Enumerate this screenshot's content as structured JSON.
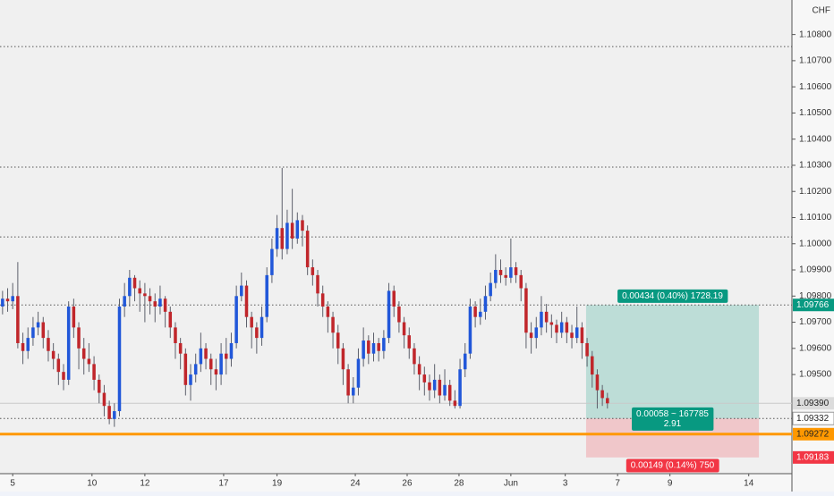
{
  "chart_data": {
    "type": "candlestick",
    "currency": "CHF",
    "up_color": "#2157d9",
    "down_color": "#c0262b",
    "wick_color": "#5d606b",
    "open": [
      1.0976,
      1.0979,
      1.0978,
      1.098,
      1.0962,
      1.0959,
      1.0964,
      1.0968,
      1.097,
      1.0964,
      1.0959,
      1.0956,
      1.0951,
      1.0948,
      1.0976,
      1.0968,
      1.096,
      1.0956,
      1.0954,
      1.0948,
      1.0943,
      1.0938,
      1.0933,
      1.0936,
      1.0976,
      1.098,
      1.0987,
      1.0983,
      1.0981,
      1.098,
      1.0978,
      1.0976,
      1.0979,
      1.0974,
      1.0968,
      1.0962,
      1.0958,
      1.0946,
      1.095,
      1.0954,
      1.096,
      1.0956,
      1.0952,
      1.095,
      1.0958,
      1.0956,
      1.0962,
      1.098,
      1.0984,
      1.0972,
      1.0968,
      1.0964,
      1.0972,
      1.0988,
      1.0998,
      1.1006,
      1.0998,
      1.1008,
      1.1002,
      1.1009,
      1.1005,
      1.0991,
      1.0988,
      1.0981,
      1.0976,
      1.0972,
      1.0966,
      1.096,
      1.0952,
      1.0942,
      1.0945,
      1.0956,
      1.0963,
      1.0958,
      1.0962,
      1.0959,
      1.0964,
      1.0982,
      1.0976,
      1.097,
      1.0965,
      1.096,
      1.0954,
      1.095,
      1.0947,
      1.0944,
      1.0948,
      1.0942,
      1.0946,
      1.094,
      1.0938,
      1.0952,
      1.0958,
      1.0976,
      1.0972,
      1.0974,
      1.098,
      1.0985,
      1.099,
      1.0988,
      1.0987,
      1.0991,
      1.0988,
      1.0983,
      1.0966,
      1.0964,
      1.0968,
      1.0974,
      1.097,
      1.0969,
      1.0966,
      1.097,
      1.0966,
      1.0964,
      1.0968,
      1.0962,
      1.0957,
      1.095,
      1.0944,
      1.0941
    ],
    "high": [
      1.0982,
      1.0983,
      1.0985,
      1.0993,
      1.0966,
      1.0968,
      1.0972,
      1.0974,
      1.0972,
      1.0967,
      1.0962,
      1.0958,
      1.0954,
      1.0978,
      1.0979,
      1.097,
      1.0964,
      1.0962,
      1.0957,
      1.095,
      1.0946,
      1.094,
      1.0939,
      1.0979,
      1.0985,
      1.099,
      1.0988,
      1.0986,
      1.0985,
      1.0983,
      1.0981,
      1.0984,
      1.098,
      1.0976,
      1.097,
      1.0964,
      1.096,
      1.0954,
      1.0958,
      1.0966,
      1.0962,
      1.0958,
      1.0956,
      1.0962,
      1.0964,
      1.0966,
      1.0984,
      1.0989,
      1.0986,
      1.0974,
      1.097,
      1.0976,
      1.0991,
      1.1002,
      1.1011,
      1.1029,
      1.1013,
      1.1021,
      1.1012,
      1.1011,
      1.1007,
      1.0994,
      1.099,
      1.0984,
      1.0978,
      1.0974,
      1.0969,
      1.0962,
      1.0954,
      1.0949,
      1.096,
      1.0968,
      1.0965,
      1.0966,
      1.0964,
      1.0967,
      1.0985,
      1.0984,
      1.0978,
      1.0972,
      1.0968,
      1.0962,
      1.0957,
      1.0953,
      1.095,
      1.0954,
      1.095,
      1.0952,
      1.0948,
      1.0944,
      1.0956,
      1.0962,
      1.0979,
      1.0978,
      1.0979,
      1.0984,
      1.0989,
      1.0996,
      1.0994,
      1.0991,
      1.1002,
      1.0993,
      1.099,
      1.0985,
      1.097,
      1.0972,
      1.098,
      1.0977,
      1.0973,
      1.0971,
      1.0974,
      1.0972,
      1.0969,
      1.0976,
      1.097,
      1.0964,
      1.0959,
      1.0952,
      1.0946,
      1.0943
    ],
    "low": [
      1.0973,
      1.0974,
      1.0975,
      1.096,
      1.0954,
      1.0956,
      1.0961,
      1.0965,
      1.096,
      1.0955,
      1.0952,
      1.0946,
      1.0944,
      1.0946,
      1.0964,
      1.0952,
      1.095,
      1.0951,
      1.0944,
      1.0939,
      1.0934,
      1.0931,
      1.093,
      1.0934,
      1.0972,
      1.0976,
      1.0978,
      1.0974,
      1.097,
      1.0973,
      1.097,
      1.0973,
      1.0968,
      1.0964,
      1.0956,
      1.0952,
      1.0942,
      1.094,
      1.0947,
      1.0951,
      1.0952,
      1.0946,
      1.0944,
      1.0946,
      1.095,
      1.0953,
      1.096,
      1.0978,
      1.0968,
      1.096,
      1.0958,
      1.0961,
      1.097,
      1.0985,
      1.0995,
      1.0994,
      1.0996,
      1.0998,
      1.1,
      1.0999,
      1.0988,
      1.0984,
      1.0976,
      1.0972,
      1.0966,
      1.096,
      1.0954,
      1.0946,
      1.0939,
      1.0939,
      1.0942,
      1.0953,
      1.0954,
      1.0955,
      1.0955,
      1.0956,
      1.0962,
      1.0972,
      1.0966,
      1.096,
      1.0956,
      1.095,
      1.0944,
      1.0942,
      1.094,
      1.0941,
      1.0939,
      1.094,
      1.0938,
      1.0937,
      1.0937,
      1.0949,
      1.0956,
      1.0968,
      1.0969,
      1.0971,
      1.0978,
      1.0983,
      1.0985,
      1.0984,
      1.0985,
      1.0985,
      1.0978,
      1.096,
      1.0958,
      1.096,
      1.0965,
      1.0966,
      1.0964,
      1.0962,
      1.0964,
      1.0962,
      1.096,
      1.0962,
      1.0956,
      1.0953,
      1.0945,
      1.0937,
      1.0938,
      1.0937
    ],
    "close": [
      1.0979,
      1.0978,
      1.098,
      1.0962,
      1.0959,
      1.0964,
      1.0968,
      1.097,
      1.0964,
      1.0959,
      1.0956,
      1.0951,
      1.0948,
      1.0976,
      1.0968,
      1.096,
      1.0956,
      1.0954,
      1.0948,
      1.0943,
      1.0938,
      1.0933,
      1.0936,
      1.0976,
      1.098,
      1.0987,
      1.0983,
      1.0981,
      1.098,
      1.0978,
      1.0976,
      1.0979,
      1.0974,
      1.0968,
      1.0962,
      1.0958,
      1.0946,
      1.095,
      1.0954,
      1.096,
      1.0956,
      1.0952,
      1.095,
      1.0958,
      1.0956,
      1.0962,
      1.098,
      1.0984,
      1.0972,
      1.0968,
      1.0964,
      1.0972,
      1.0988,
      1.0998,
      1.1006,
      1.0998,
      1.1008,
      1.1002,
      1.1009,
      1.1005,
      1.0991,
      1.0988,
      1.0981,
      1.0976,
      1.0972,
      1.0966,
      1.096,
      1.0952,
      1.0942,
      1.0945,
      1.0956,
      1.0963,
      1.0958,
      1.0962,
      1.0959,
      1.0964,
      1.0982,
      1.0976,
      1.097,
      1.0965,
      1.096,
      1.0954,
      1.095,
      1.0947,
      1.0944,
      1.0948,
      1.0942,
      1.0946,
      1.094,
      1.0938,
      1.0952,
      1.0958,
      1.0976,
      1.0972,
      1.0974,
      1.098,
      1.0985,
      1.099,
      1.0988,
      1.0987,
      1.0991,
      1.0988,
      1.0983,
      1.0966,
      1.0964,
      1.0968,
      1.0974,
      1.097,
      1.0969,
      1.0966,
      1.097,
      1.0966,
      1.0964,
      1.0968,
      1.0962,
      1.0957,
      1.095,
      1.0944,
      1.0941,
      1.0939
    ],
    "xlim": [
      -0.5,
      155.3
    ],
    "ylim": [
      1.09121,
      1.10932
    ],
    "yticks": [
      {
        "value": 1.108,
        "label": "1.10800"
      },
      {
        "value": 1.107,
        "label": "1.10700"
      },
      {
        "value": 1.106,
        "label": "1.10600"
      },
      {
        "value": 1.105,
        "label": "1.10500"
      },
      {
        "value": 1.104,
        "label": "1.10400"
      },
      {
        "value": 1.103,
        "label": "1.10300"
      },
      {
        "value": 1.102,
        "label": "1.10200"
      },
      {
        "value": 1.101,
        "label": "1.10100"
      },
      {
        "value": 1.1,
        "label": "1.10000"
      },
      {
        "value": 1.099,
        "label": "1.09900"
      },
      {
        "value": 1.098,
        "label": "1.09800"
      },
      {
        "value": 1.097,
        "label": "1.09700"
      },
      {
        "value": 1.096,
        "label": "1.09600"
      },
      {
        "value": 1.095,
        "label": "1.09500"
      }
    ],
    "xticks": [
      {
        "value": 2,
        "label": "5"
      },
      {
        "value": 17.6,
        "label": "10"
      },
      {
        "value": 28,
        "label": "12"
      },
      {
        "value": 43.5,
        "label": "17"
      },
      {
        "value": 54,
        "label": "19"
      },
      {
        "value": 69.4,
        "label": "24"
      },
      {
        "value": 79.6,
        "label": "26"
      },
      {
        "value": 89.8,
        "label": "28"
      },
      {
        "value": 100,
        "label": "Jun"
      },
      {
        "value": 110.7,
        "label": "3"
      },
      {
        "value": 121,
        "label": "7"
      },
      {
        "value": 131.3,
        "label": "9"
      },
      {
        "value": 146.8,
        "label": "14"
      }
    ],
    "levels": [
      {
        "value": 1.10754,
        "style": "dotted",
        "color": "#555555"
      },
      {
        "value": 1.10293,
        "style": "dotted",
        "color": "#555555"
      },
      {
        "value": 1.10026,
        "style": "dotted",
        "color": "#555555"
      },
      {
        "value": 1.09766,
        "label": "1.09766",
        "style": "dotted",
        "color": "#555555",
        "tag_color": "#089981",
        "tag_text": "#ffffff"
      },
      {
        "value": 1.0939,
        "label": "1.09390",
        "style": "thin",
        "color": "#c9c9c9",
        "tag_color": "#dcdcdc",
        "tag_text": "#222222"
      },
      {
        "value": 1.09332,
        "label": "1.09332",
        "style": "dotted",
        "color": "#555555",
        "tag_color": "#ffffff",
        "tag_text": "#222222"
      },
      {
        "value": 1.09272,
        "label": "1.09272",
        "style": "solid",
        "color": "#ff9800",
        "tag_color": "#ff9800",
        "tag_text": "#222222"
      },
      {
        "value": 1.09183,
        "label": "1.09183",
        "style": "none",
        "color": "#f23645",
        "tag_color": "#f23645",
        "tag_text": "#ffffff"
      }
    ],
    "position": {
      "start": 114.8,
      "end": 148.8,
      "entry": 1.09332,
      "target": 1.09766,
      "stop": 1.09183,
      "target_label": "0.00434 (0.40%) 1728.19",
      "entry_label": "0.00058 ~ 167785",
      "ratio_label": "2.91",
      "stop_label": "0.00149 (0.14%) 750"
    }
  }
}
